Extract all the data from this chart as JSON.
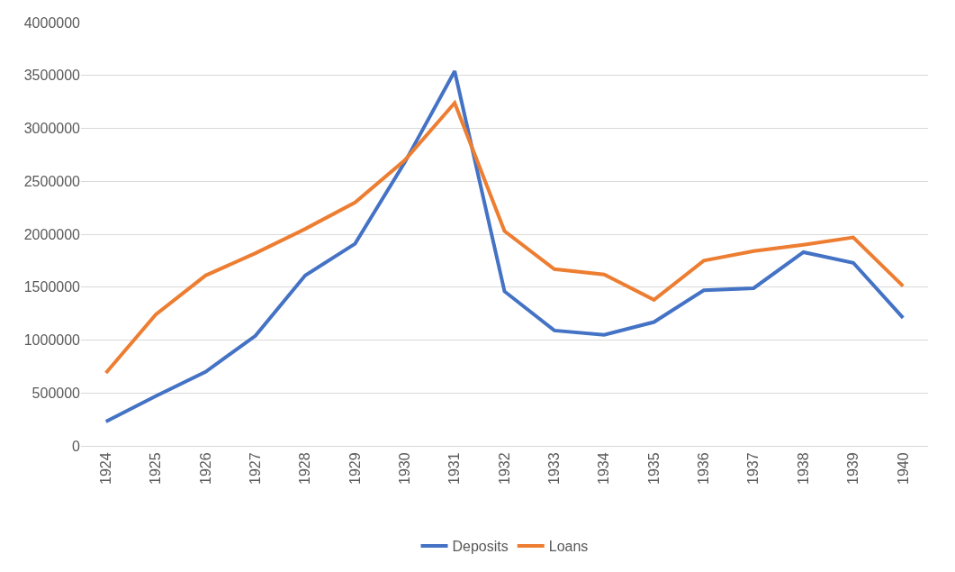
{
  "chart_data": {
    "type": "line",
    "categories": [
      "1924",
      "1925",
      "1926",
      "1927",
      "1928",
      "1929",
      "1930",
      "1931",
      "1932",
      "1933",
      "1934",
      "1935",
      "1936",
      "1937",
      "1938",
      "1939",
      "1940"
    ],
    "series": [
      {
        "name": "Deposits",
        "color": "#4472c4",
        "values": [
          230000,
          470000,
          700000,
          1040000,
          1610000,
          1910000,
          2680000,
          3540000,
          1460000,
          1090000,
          1050000,
          1170000,
          1470000,
          1490000,
          1830000,
          1730000,
          1210000
        ]
      },
      {
        "name": "Loans",
        "color": "#ed7d31",
        "values": [
          690000,
          1240000,
          1610000,
          1820000,
          2050000,
          2300000,
          2700000,
          3240000,
          2030000,
          1670000,
          1620000,
          1380000,
          1750000,
          1840000,
          1900000,
          1970000,
          1510000
        ]
      }
    ],
    "ylim": [
      0,
      4000000
    ],
    "yticks": [
      0,
      500000,
      1000000,
      1500000,
      2000000,
      2500000,
      3000000,
      3500000,
      4000000
    ],
    "grid": "y",
    "legend": "bottom",
    "marker": "none",
    "line_style": "solid"
  }
}
